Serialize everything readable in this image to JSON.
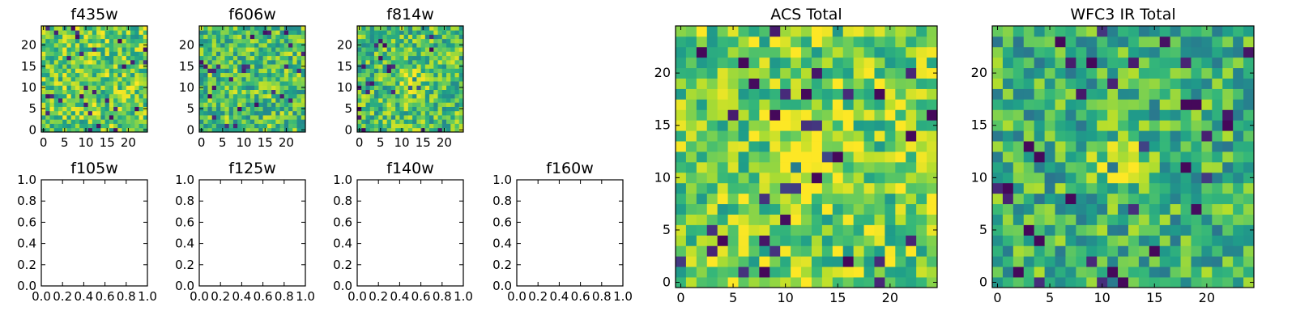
{
  "figure": {
    "background": "#ffffff",
    "colormap": "viridis"
  },
  "chart_data": [
    {
      "type": "heatmap",
      "title": "f435w",
      "xticks": [
        0,
        5,
        10,
        15,
        20
      ],
      "yticks": [
        0,
        5,
        10,
        15,
        20
      ],
      "xlim": [
        -0.5,
        24.5
      ],
      "ylim": [
        -0.5,
        24.5
      ],
      "grid_size": [
        25,
        25
      ],
      "texture_seed": 11,
      "bias": 0.05
    },
    {
      "type": "heatmap",
      "title": "f606w",
      "xticks": [
        0,
        5,
        10,
        15,
        20
      ],
      "yticks": [
        0,
        5,
        10,
        15,
        20
      ],
      "xlim": [
        -0.5,
        24.5
      ],
      "ylim": [
        -0.5,
        24.5
      ],
      "grid_size": [
        25,
        25
      ],
      "texture_seed": 23,
      "bias": 0.0
    },
    {
      "type": "heatmap",
      "title": "f814w",
      "xticks": [
        0,
        5,
        10,
        15,
        20
      ],
      "yticks": [
        0,
        5,
        10,
        15,
        20
      ],
      "xlim": [
        -0.5,
        24.5
      ],
      "ylim": [
        -0.5,
        24.5
      ],
      "grid_size": [
        25,
        25
      ],
      "texture_seed": 37,
      "bias": 0.0,
      "center_bright": true
    },
    {
      "type": "empty",
      "title": "f105w",
      "xticks": [
        0.0,
        0.2,
        0.4,
        0.6,
        0.8,
        1.0
      ],
      "yticks": [
        0.0,
        0.2,
        0.4,
        0.6,
        0.8,
        1.0
      ],
      "xlim": [
        0,
        1
      ],
      "ylim": [
        0,
        1
      ]
    },
    {
      "type": "empty",
      "title": "f125w",
      "xticks": [
        0.0,
        0.2,
        0.4,
        0.6,
        0.8,
        1.0
      ],
      "yticks": [
        0.0,
        0.2,
        0.4,
        0.6,
        0.8,
        1.0
      ],
      "xlim": [
        0,
        1
      ],
      "ylim": [
        0,
        1
      ]
    },
    {
      "type": "empty",
      "title": "f140w",
      "xticks": [
        0.0,
        0.2,
        0.4,
        0.6,
        0.8,
        1.0
      ],
      "yticks": [
        0.0,
        0.2,
        0.4,
        0.6,
        0.8,
        1.0
      ],
      "xlim": [
        0,
        1
      ],
      "ylim": [
        0,
        1
      ]
    },
    {
      "type": "empty",
      "title": "f160w",
      "xticks": [
        0.0,
        0.2,
        0.4,
        0.6,
        0.8,
        1.0
      ],
      "yticks": [
        0.0,
        0.2,
        0.4,
        0.6,
        0.8,
        1.0
      ],
      "xlim": [
        0,
        1
      ],
      "ylim": [
        0,
        1
      ]
    },
    {
      "type": "heatmap",
      "title": "ACS Total",
      "xticks": [
        0,
        5,
        10,
        15,
        20
      ],
      "yticks": [
        0,
        5,
        10,
        15,
        20
      ],
      "xlim": [
        -0.5,
        24.5
      ],
      "ylim": [
        -0.5,
        24.5
      ],
      "grid_size": [
        25,
        25
      ],
      "texture_seed": 51,
      "bias": 0.08,
      "center_bright": true,
      "dark_cells": [
        [
          12,
          18
        ],
        [
          15,
          12
        ],
        [
          9,
          16
        ],
        [
          4,
          4
        ],
        [
          2,
          22
        ],
        [
          13,
          10
        ],
        [
          8,
          1
        ],
        [
          19,
          18
        ],
        [
          6,
          21
        ],
        [
          24,
          16
        ],
        [
          16,
          2
        ],
        [
          22,
          14
        ]
      ]
    },
    {
      "type": "heatmap",
      "title": "WFC3 IR Total",
      "xticks": [
        0,
        5,
        10,
        15,
        20
      ],
      "yticks": [
        0,
        5,
        10,
        15,
        20
      ],
      "xlim": [
        -0.5,
        24.5
      ],
      "ylim": [
        -0.5,
        24.5
      ],
      "grid_size": [
        25,
        25
      ],
      "texture_seed": 77,
      "bias": -0.06,
      "center_bright": true,
      "dark_cells": [
        [
          18,
          17
        ],
        [
          19,
          17
        ],
        [
          3,
          13
        ],
        [
          4,
          12
        ],
        [
          3,
          5
        ],
        [
          4,
          4
        ],
        [
          2,
          1
        ],
        [
          11,
          1
        ],
        [
          12,
          0
        ],
        [
          18,
          11
        ],
        [
          6,
          23
        ],
        [
          1,
          9
        ],
        [
          7,
          8
        ],
        [
          22,
          15
        ],
        [
          15,
          3
        ],
        [
          9,
          21
        ]
      ]
    }
  ]
}
